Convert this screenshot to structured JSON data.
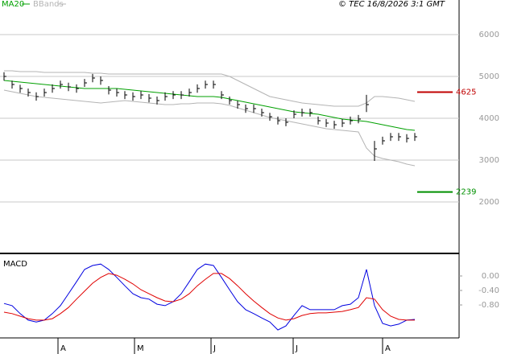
{
  "chart_data": {
    "type": "ohlc",
    "note": "© TEC 16/8/2026 3:1 GMT",
    "xlim": [
      -0.5,
      56.5
    ],
    "xticks": [
      {
        "value": 6.7,
        "label": "A"
      },
      {
        "value": 16.2,
        "label": "M"
      },
      {
        "value": 25.7,
        "label": "J"
      },
      {
        "value": 35.9,
        "label": "J"
      },
      {
        "value": 47,
        "label": "A"
      }
    ],
    "ylim": [
      808,
      6827
    ],
    "yticks": [
      2000,
      3000,
      4000,
      5000,
      6000
    ],
    "grid": true,
    "bar_color": "#000000",
    "high": [
      5100,
      4900,
      4800,
      4710,
      4620,
      4710,
      4810,
      4900,
      4850,
      4810,
      4940,
      5060,
      5000,
      4770,
      4710,
      4650,
      4620,
      4650,
      4580,
      4520,
      4620,
      4650,
      4650,
      4710,
      4810,
      4900,
      4900,
      4650,
      4520,
      4420,
      4330,
      4330,
      4230,
      4130,
      4040,
      4000,
      4190,
      4230,
      4230,
      4040,
      3980,
      3940,
      3980,
      4040,
      4080,
      4560,
      3460,
      3560,
      3650,
      3650,
      3620,
      3650
    ],
    "low": [
      4900,
      4710,
      4610,
      4520,
      4420,
      4520,
      4610,
      4710,
      4650,
      4610,
      4750,
      4860,
      4800,
      4570,
      4520,
      4460,
      4420,
      4460,
      4380,
      4330,
      4420,
      4460,
      4460,
      4520,
      4610,
      4710,
      4710,
      4460,
      4330,
      4230,
      4130,
      4130,
      4040,
      3940,
      3850,
      3810,
      4000,
      4040,
      4040,
      3850,
      3790,
      3750,
      3790,
      3850,
      3880,
      4150,
      2980,
      3370,
      3460,
      3460,
      3420,
      3460
    ],
    "close": [
      5000,
      4808,
      4712,
      4615,
      4519,
      4615,
      4712,
      4808,
      4750,
      4712,
      4846,
      4962,
      4904,
      4673,
      4615,
      4558,
      4519,
      4558,
      4481,
      4423,
      4519,
      4558,
      4558,
      4615,
      4712,
      4808,
      4808,
      4558,
      4423,
      4327,
      4231,
      4231,
      4135,
      4038,
      3942,
      3904,
      4096,
      4135,
      4135,
      3942,
      3885,
      3846,
      3885,
      3942,
      3981,
      4327,
      3269,
      3462,
      3558,
      3558,
      3519,
      3558
    ],
    "ma": {
      "name": "MA20",
      "color": "#00a000",
      "values": [
        4904,
        4885,
        4866,
        4846,
        4827,
        4808,
        4789,
        4769,
        4750,
        4731,
        4712,
        4712,
        4712,
        4712,
        4712,
        4692,
        4673,
        4654,
        4635,
        4615,
        4596,
        4577,
        4558,
        4538,
        4519,
        4519,
        4519,
        4500,
        4462,
        4423,
        4385,
        4346,
        4308,
        4269,
        4231,
        4192,
        4154,
        4135,
        4115,
        4096,
        4058,
        4019,
        3981,
        3962,
        3942,
        3923,
        3885,
        3846,
        3808,
        3769,
        3731,
        3712
      ]
    },
    "bbands": {
      "name": "BBands",
      "color": "#b4b4b4",
      "upper": [
        5135,
        5135,
        5115,
        5115,
        5115,
        5096,
        5096,
        5096,
        5096,
        5096,
        5096,
        5077,
        5077,
        5058,
        5058,
        5058,
        5058,
        5058,
        5058,
        5058,
        5058,
        5058,
        5058,
        5058,
        5058,
        5058,
        5058,
        5058,
        5000,
        4904,
        4808,
        4712,
        4615,
        4519,
        4481,
        4442,
        4404,
        4365,
        4346,
        4327,
        4308,
        4288,
        4288,
        4288,
        4288,
        4365,
        4519,
        4519,
        4500,
        4481,
        4442,
        4404
      ],
      "lower": [
        4673,
        4635,
        4596,
        4558,
        4519,
        4500,
        4481,
        4462,
        4442,
        4423,
        4404,
        4385,
        4365,
        4385,
        4404,
        4423,
        4404,
        4385,
        4365,
        4346,
        4327,
        4327,
        4346,
        4346,
        4365,
        4365,
        4365,
        4346,
        4308,
        4250,
        4192,
        4135,
        4077,
        4019,
        3981,
        3942,
        3904,
        3865,
        3827,
        3788,
        3750,
        3731,
        3712,
        3692,
        3673,
        3288,
        3096,
        3038,
        3000,
        2962,
        2904,
        2865
      ]
    },
    "levels": [
      {
        "value": 4625,
        "color": "#c00000"
      },
      {
        "value": 2239,
        "color": "#009000"
      }
    ],
    "macd_panel": {
      "title": "MACD",
      "ylim": [
        -1.71,
        0.6
      ],
      "yticks": [
        {
          "value": 0,
          "label": "0.00"
        },
        {
          "value": -0.4,
          "label": "-0.40"
        },
        {
          "value": -0.8,
          "label": "-0.80"
        }
      ],
      "macd_color": "#0000e0",
      "signal_color": "#e00000",
      "macd": [
        -0.76,
        -0.82,
        -1.04,
        -1.22,
        -1.27,
        -1.22,
        -1.04,
        -0.82,
        -0.49,
        -0.16,
        0.18,
        0.29,
        0.33,
        0.18,
        -0.04,
        -0.27,
        -0.49,
        -0.6,
        -0.64,
        -0.78,
        -0.82,
        -0.71,
        -0.49,
        -0.16,
        0.18,
        0.33,
        0.29,
        -0.04,
        -0.38,
        -0.71,
        -0.93,
        -1.04,
        -1.16,
        -1.27,
        -1.49,
        -1.38,
        -1.09,
        -0.82,
        -0.93,
        -0.93,
        -0.93,
        -0.93,
        -0.82,
        -0.78,
        -0.6,
        0.18,
        -0.82,
        -1.31,
        -1.38,
        -1.33,
        -1.22,
        -1.2
      ],
      "signal": [
        -1.0,
        -1.04,
        -1.11,
        -1.18,
        -1.22,
        -1.22,
        -1.18,
        -1.04,
        -0.87,
        -0.64,
        -0.42,
        -0.2,
        -0.04,
        0.07,
        0.02,
        -0.09,
        -0.22,
        -0.38,
        -0.49,
        -0.6,
        -0.69,
        -0.71,
        -0.64,
        -0.49,
        -0.27,
        -0.09,
        0.07,
        0.07,
        -0.07,
        -0.27,
        -0.49,
        -0.69,
        -0.87,
        -1.04,
        -1.16,
        -1.22,
        -1.18,
        -1.09,
        -1.04,
        -1.02,
        -1.02,
        -1.0,
        -0.98,
        -0.93,
        -0.87,
        -0.6,
        -0.64,
        -0.93,
        -1.11,
        -1.2,
        -1.22,
        -1.22
      ]
    }
  }
}
